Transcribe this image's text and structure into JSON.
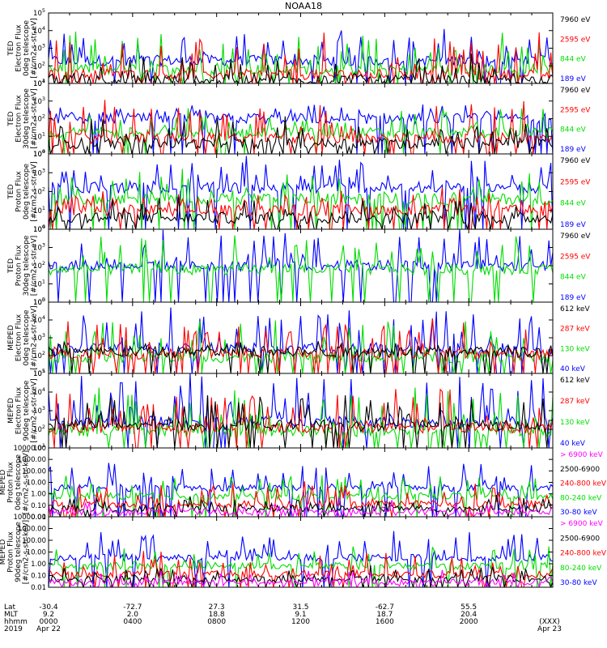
{
  "title": "NOAA18",
  "colors": {
    "blue": "#0000ff",
    "green": "#00dd00",
    "red": "#ff0000",
    "black": "#000000",
    "magenta": "#ff00ff"
  },
  "chart_data": [
    {
      "type": "line",
      "scale": "log",
      "ylim_exp": [
        1,
        5
      ],
      "ylabel": [
        "TED",
        "Electron Flux",
        "0deg telescope",
        "[#/cm2-s-str-eV]"
      ],
      "series": [
        {
          "name": "7960 eV",
          "color": "#000000",
          "base": 1.2,
          "spike": 1.3
        },
        {
          "name": "2595 eV",
          "color": "#ff0000",
          "base": 1.5,
          "spike": 2.2
        },
        {
          "name": "844 eV",
          "color": "#00dd00",
          "base": 1.8,
          "spike": 2.0
        },
        {
          "name": "189 eV",
          "color": "#0000ff",
          "base": 2.3,
          "spike": 1.6
        }
      ]
    },
    {
      "type": "line",
      "scale": "log",
      "ylim_exp": [
        0,
        4
      ],
      "ylabel": [
        "TED",
        "Electron Flux",
        "30deg telescope",
        "[#/cm2-s-str-eV]"
      ],
      "series": [
        {
          "name": "7960 eV",
          "color": "#000000",
          "base": 0.6,
          "spike": 1.3
        },
        {
          "name": "2595 eV",
          "color": "#ff0000",
          "base": 0.9,
          "spike": 2.0
        },
        {
          "name": "844 eV",
          "color": "#00dd00",
          "base": 1.2,
          "spike": 1.4
        },
        {
          "name": "189 eV",
          "color": "#0000ff",
          "base": 2.0,
          "spike": 0.6
        }
      ]
    },
    {
      "type": "line",
      "scale": "log",
      "ylim_exp": [
        0,
        4
      ],
      "ylabel": [
        "TED",
        "Proton Flux",
        "0deg telescope",
        "[#/cm2-s-str-eV]"
      ],
      "series": [
        {
          "name": "7960 eV",
          "color": "#000000",
          "base": 0.6,
          "spike": 1.0
        },
        {
          "name": "2595 eV",
          "color": "#ff0000",
          "base": 1.0,
          "spike": 1.0
        },
        {
          "name": "844 eV",
          "color": "#00dd00",
          "base": 1.6,
          "spike": 1.4
        },
        {
          "name": "189 eV",
          "color": "#0000ff",
          "base": 2.2,
          "spike": 1.6
        }
      ]
    },
    {
      "type": "line",
      "scale": "log",
      "ylim_exp": [
        0,
        4
      ],
      "ylabel": [
        "TED",
        "Proton Flux",
        "30deg telescope",
        "[#/cm2-s-str-eV]"
      ],
      "series": [
        {
          "name": "7960 eV",
          "color": "#000000",
          "base": null,
          "spike": 0
        },
        {
          "name": "2595 eV",
          "color": "#ff0000",
          "base": null,
          "spike": 0
        },
        {
          "name": "844 eV",
          "color": "#00dd00",
          "base": 1.8,
          "spike": 1.6
        },
        {
          "name": "189 eV",
          "color": "#0000ff",
          "base": 2.0,
          "spike": 1.8
        }
      ]
    },
    {
      "type": "line",
      "scale": "log",
      "ylim_exp": [
        1,
        5
      ],
      "ylabel": [
        "MEPED",
        "Electron Flux",
        "0deg telescope",
        "[#/cm2-s-str-keV]"
      ],
      "series": [
        {
          "name": "612 keV",
          "color": "#000000",
          "base": 2.2,
          "spike": 0.6
        },
        {
          "name": "287 keV",
          "color": "#ff0000",
          "base": 2.1,
          "spike": 1.8
        },
        {
          "name": "130 keV",
          "color": "#00dd00",
          "base": 1.9,
          "spike": 2.2
        },
        {
          "name": "40 keV",
          "color": "#0000ff",
          "base": 2.4,
          "spike": 2.4
        }
      ]
    },
    {
      "type": "line",
      "scale": "log",
      "ylim_exp": [
        1,
        5
      ],
      "ylabel": [
        "MEPED",
        "Electron Flux",
        "90deg telescope",
        "[#/cm2-s-str-keV]"
      ],
      "series": [
        {
          "name": "612 keV",
          "color": "#000000",
          "base": 2.2,
          "spike": 1.6
        },
        {
          "name": "287 keV",
          "color": "#ff0000",
          "base": 2.1,
          "spike": 2.2
        },
        {
          "name": "130 keV",
          "color": "#00dd00",
          "base": 1.9,
          "spike": 2.4
        },
        {
          "name": "40 keV",
          "color": "#0000ff",
          "base": 2.4,
          "spike": 2.4
        }
      ]
    },
    {
      "type": "line",
      "scale": "log",
      "ylim_exp": [
        -2,
        4
      ],
      "tick_labels": [
        "0.01",
        "0.10",
        "1.00",
        "10.00",
        "100.00",
        "1000.00",
        "10000.00"
      ],
      "ylabel": [
        "MEPED",
        "Proton Flux",
        "0deg telescope",
        "[#/cm2-s-str-keV]"
      ],
      "series": [
        {
          "name": "> 6900 keV",
          "color": "#ff00ff",
          "base": -1.6,
          "spike": 0.8
        },
        {
          "name": "2500-6900",
          "color": "#000000",
          "base": -1.3,
          "spike": 1.0
        },
        {
          "name": "240-800 keV",
          "color": "#ff0000",
          "base": -0.9,
          "spike": 1.8
        },
        {
          "name": "80-240 keV",
          "color": "#00dd00",
          "base": -0.2,
          "spike": 1.8
        },
        {
          "name": "30-80 keV",
          "color": "#0000ff",
          "base": 0.5,
          "spike": 2.2
        }
      ]
    },
    {
      "type": "line",
      "scale": "log",
      "ylim_exp": [
        -2,
        4
      ],
      "tick_labels": [
        "0.01",
        "0.10",
        "1.00",
        "10.00",
        "100.00",
        "1000.00",
        "10000.00"
      ],
      "ylabel": [
        "MEPED",
        "Proton Flux",
        "90deg telescope",
        "[#/cm2-s-str-keV]"
      ],
      "series": [
        {
          "name": "> 6900 keV",
          "color": "#ff00ff",
          "base": -1.6,
          "spike": 0.8
        },
        {
          "name": "2500-6900",
          "color": "#000000",
          "base": -1.3,
          "spike": 1.0
        },
        {
          "name": "240-800 keV",
          "color": "#ff0000",
          "base": -0.9,
          "spike": 1.8
        },
        {
          "name": "80-240 keV",
          "color": "#00dd00",
          "base": -0.2,
          "spike": 1.8
        },
        {
          "name": "30-80 keV",
          "color": "#0000ff",
          "base": 0.5,
          "spike": 2.2
        }
      ]
    }
  ],
  "ephemeris": {
    "row_labels": [
      "Lat",
      "MLT",
      "hhmm",
      "2019"
    ],
    "columns": [
      {
        "frac": 0.0,
        "lat": "-30.4",
        "mlt": "9.2",
        "hhmm": "0000",
        "date": "Apr 22"
      },
      {
        "frac": 0.1667,
        "lat": "-72.7",
        "mlt": "2.0",
        "hhmm": "0400",
        "date": ""
      },
      {
        "frac": 0.3333,
        "lat": "27.3",
        "mlt": "18.8",
        "hhmm": "0800",
        "date": ""
      },
      {
        "frac": 0.5,
        "lat": "31.5",
        "mlt": "9.1",
        "hhmm": "1200",
        "date": ""
      },
      {
        "frac": 0.6667,
        "lat": "-62.7",
        "mlt": "18.7",
        "hhmm": "1600",
        "date": ""
      },
      {
        "frac": 0.8333,
        "lat": "55.5",
        "mlt": "20.4",
        "hhmm": "2000",
        "date": ""
      },
      {
        "frac": 1.0,
        "lat": "",
        "mlt": "",
        "hhmm": "(XXX)",
        "date": "Apr 23"
      }
    ]
  }
}
